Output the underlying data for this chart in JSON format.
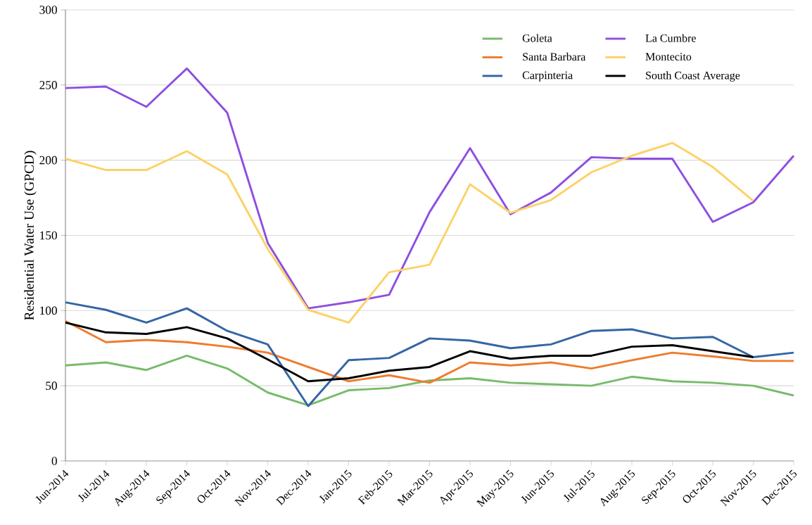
{
  "chart_data": {
    "type": "line",
    "ylabel": "Residential Water Use (GPCD)",
    "categories": [
      "Jun-2014",
      "Jul-2014",
      "Aug-2014",
      "Sep-2014",
      "Oct-2014",
      "Nov-2014",
      "Dec-2014",
      "Jan-2015",
      "Feb-2015",
      "Mar-2015",
      "Apr-2015",
      "May-2015",
      "Jun-2015",
      "Jul-2015",
      "Aug-2015",
      "Sep-2015",
      "Oct-2015",
      "Nov-2015",
      "Dec-2015"
    ],
    "series": [
      {
        "name": "Goleta",
        "color": "#77bb6b",
        "values": [
          63.5,
          65.5,
          60.5,
          70,
          61.5,
          45.5,
          37,
          47,
          48.5,
          53.5,
          55,
          52,
          51,
          50,
          56,
          53,
          52,
          50,
          43.5
        ]
      },
      {
        "name": "La Cumbre",
        "color": "#8e4fe0",
        "values": [
          248,
          249,
          235.5,
          261,
          231.5,
          145,
          101.5,
          105.5,
          110.5,
          165.5,
          208,
          164,
          178.5,
          202,
          201,
          201,
          159,
          172,
          203
        ]
      },
      {
        "name": "Santa Barbara",
        "color": "#ef7b2d",
        "values": [
          93,
          79,
          80.5,
          79,
          76,
          72,
          62.5,
          53,
          57,
          52,
          65.5,
          63.5,
          65.5,
          61.5,
          67,
          72,
          69.5,
          66.5,
          66.5
        ]
      },
      {
        "name": "Montecito",
        "color": "#fcd267",
        "values": [
          201,
          193.5,
          193.5,
          206,
          190.5,
          141,
          100.5,
          92,
          125.5,
          130.5,
          184,
          165,
          173.5,
          192,
          203,
          211.5,
          195.5,
          173,
          null
        ]
      },
      {
        "name": "Carpinteria",
        "color": "#3465a4",
        "values": [
          105.5,
          100.5,
          92,
          101.5,
          86.5,
          77.5,
          36.5,
          67,
          68.5,
          81.5,
          80,
          75,
          77.5,
          86.5,
          87.5,
          81.5,
          82.5,
          69,
          72
        ]
      },
      {
        "name": "South Coast Average",
        "color": "#000000",
        "values": [
          92,
          85.5,
          84.5,
          89,
          81.5,
          67.5,
          53,
          55,
          60,
          62.5,
          73,
          68,
          70,
          70,
          76,
          77,
          73,
          69,
          null
        ]
      }
    ],
    "ylim": [
      0,
      300
    ],
    "yticks": [
      0,
      50,
      100,
      150,
      200,
      250,
      300
    ],
    "grid": "y",
    "legend": "top right",
    "line_style": "solid"
  }
}
